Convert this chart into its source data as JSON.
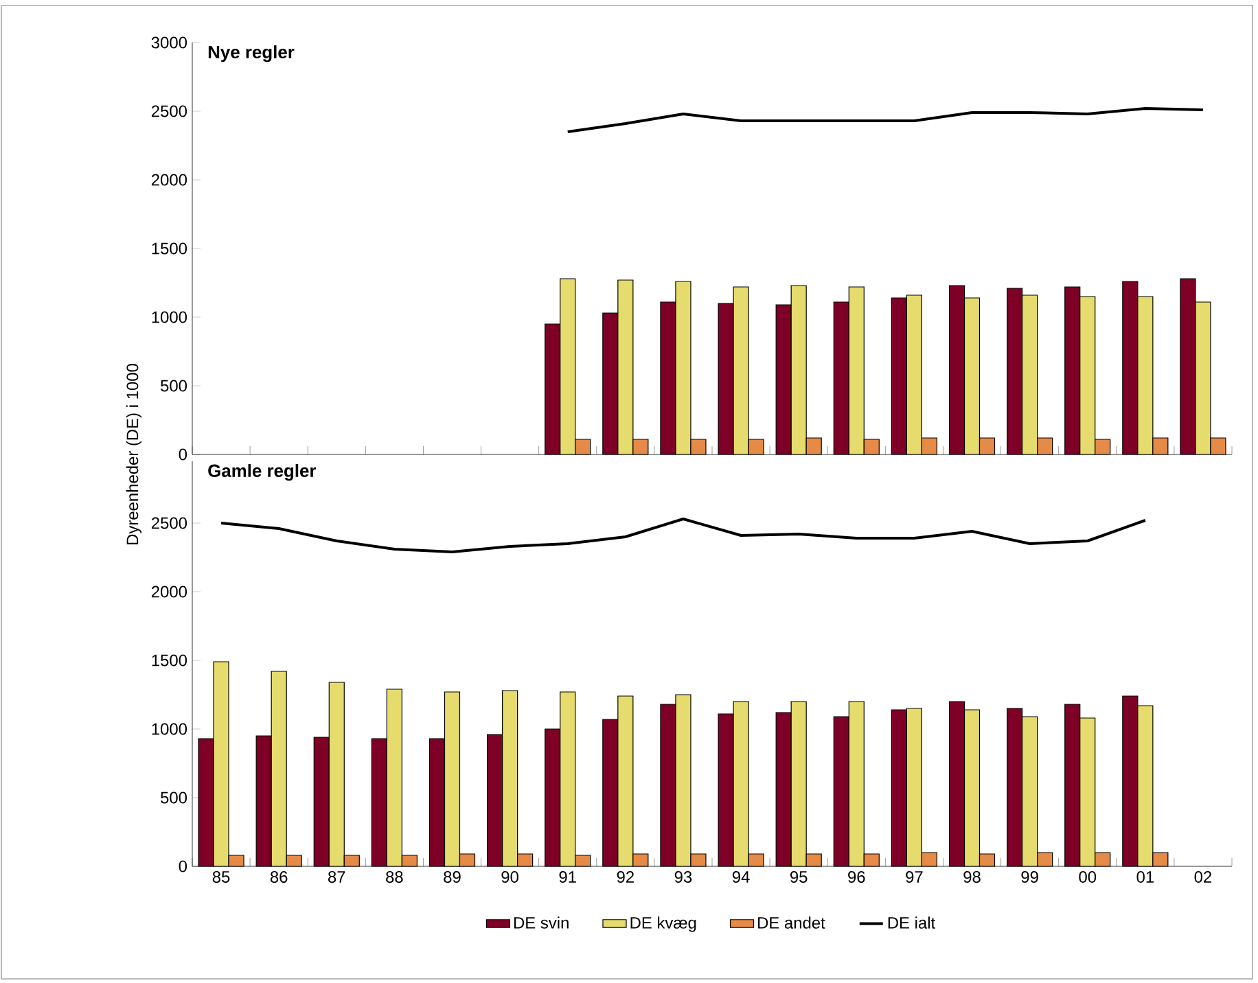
{
  "chart_data": [
    {
      "type": "bar",
      "title": "Nye regler",
      "ylabel": "Dyreenheder (DE) i 1000",
      "categories": [
        "85",
        "86",
        "87",
        "88",
        "89",
        "90",
        "91",
        "92",
        "93",
        "94",
        "95",
        "96",
        "97",
        "98",
        "99",
        "00",
        "01",
        "02"
      ],
      "ylim": [
        0,
        3000
      ],
      "yticks": [
        0,
        500,
        1000,
        1500,
        2000,
        2500,
        3000
      ],
      "tick_labels": "y",
      "legend": false,
      "series": [
        {
          "color": "#7f0026",
          "values": [
            null,
            null,
            null,
            null,
            null,
            null,
            950,
            1030,
            1110,
            1100,
            1090,
            1110,
            1140,
            1230,
            1210,
            1220,
            1260,
            1280
          ]
        },
        {
          "color": "#e6dc6e",
          "values": [
            null,
            null,
            null,
            null,
            null,
            null,
            1280,
            1270,
            1260,
            1220,
            1230,
            1220,
            1160,
            1140,
            1160,
            1150,
            1150,
            1110
          ]
        },
        {
          "color": "#e68a48",
          "values": [
            null,
            null,
            null,
            null,
            null,
            null,
            110,
            110,
            110,
            110,
            120,
            110,
            120,
            120,
            120,
            110,
            120,
            120
          ]
        },
        {
          "type": "line",
          "color": "#000000",
          "values": [
            null,
            null,
            null,
            null,
            null,
            null,
            2350,
            2410,
            2480,
            2430,
            2430,
            2430,
            2430,
            2490,
            2490,
            2480,
            2520,
            2510
          ]
        }
      ]
    },
    {
      "type": "bar",
      "title": "Gamle regler",
      "categories": [
        "85",
        "86",
        "87",
        "88",
        "89",
        "90",
        "91",
        "92",
        "93",
        "94",
        "95",
        "96",
        "97",
        "98",
        "99",
        "00",
        "01",
        "02"
      ],
      "ylim": [
        0,
        2950
      ],
      "yticks": [
        0,
        500,
        1000,
        1500,
        2000,
        2500
      ],
      "legend": "bottom",
      "series": [
        {
          "name": "DE svin",
          "color": "#7f0026",
          "values": [
            930,
            950,
            940,
            930,
            930,
            960,
            1000,
            1070,
            1180,
            1110,
            1120,
            1090,
            1140,
            1200,
            1150,
            1180,
            1240,
            null
          ]
        },
        {
          "name": "DE kvæg",
          "color": "#e6dc6e",
          "values": [
            1490,
            1420,
            1340,
            1290,
            1270,
            1280,
            1270,
            1240,
            1250,
            1200,
            1200,
            1200,
            1150,
            1140,
            1090,
            1080,
            1170,
            null
          ]
        },
        {
          "name": "DE andet",
          "color": "#e68a48",
          "values": [
            80,
            80,
            80,
            80,
            90,
            90,
            80,
            90,
            90,
            90,
            90,
            90,
            100,
            90,
            100,
            100,
            100,
            null
          ]
        },
        {
          "type": "line",
          "name": "DE ialt",
          "color": "#000000",
          "values": [
            2500,
            2460,
            2370,
            2310,
            2290,
            2330,
            2350,
            2400,
            2530,
            2410,
            2420,
            2390,
            2390,
            2440,
            2350,
            2370,
            2520,
            null
          ]
        }
      ]
    }
  ]
}
